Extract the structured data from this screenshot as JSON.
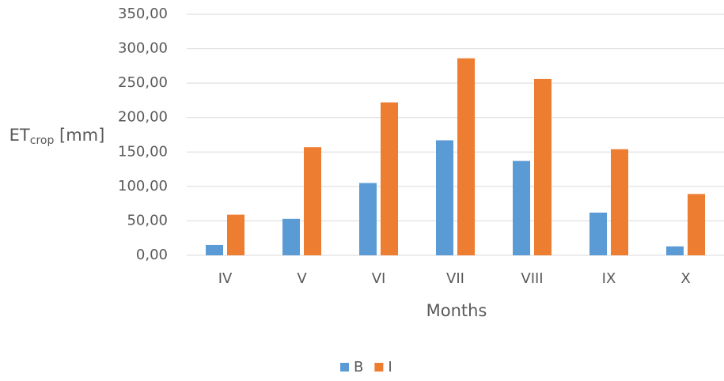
{
  "chart_data": {
    "type": "bar",
    "y_label": {
      "base": "ET",
      "subscript": "crop",
      "suffix": " [mm]"
    },
    "x_label": "Months",
    "categories": [
      "IV",
      "V",
      "VI",
      "VII",
      "VIII",
      "IX",
      "X"
    ],
    "series": [
      {
        "name": "B",
        "color": "#5b9bd5",
        "values": [
          15,
          53,
          105,
          167,
          137,
          62,
          13
        ]
      },
      {
        "name": "I",
        "color": "#ed7d31",
        "values": [
          59,
          157,
          222,
          286,
          256,
          154,
          89
        ]
      }
    ],
    "ylim": [
      0,
      350
    ],
    "yticks": [
      {
        "value": 0,
        "label": "0,00"
      },
      {
        "value": 50,
        "label": "50,00"
      },
      {
        "value": 100,
        "label": "100,00"
      },
      {
        "value": 150,
        "label": "150,00"
      },
      {
        "value": 200,
        "label": "200,00"
      },
      {
        "value": 250,
        "label": "250,00"
      },
      {
        "value": 300,
        "label": "300,00"
      },
      {
        "value": 350,
        "label": "350,00"
      }
    ],
    "grid": true,
    "legend": "bottom"
  }
}
